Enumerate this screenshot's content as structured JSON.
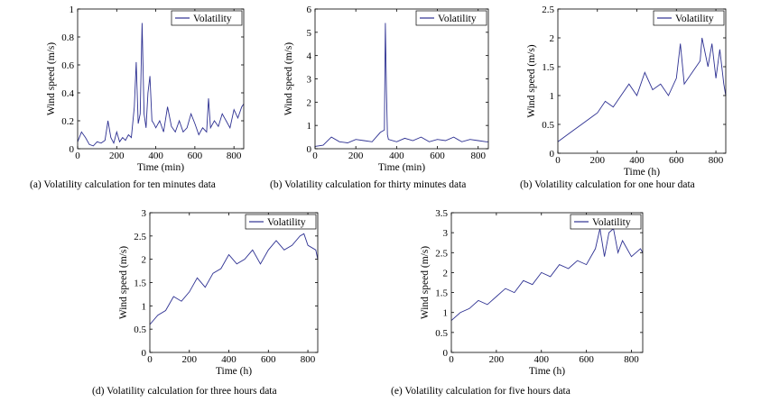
{
  "chart_data": [
    {
      "type": "line",
      "xlabel": "Time (min)",
      "ylabel": "Wind speed (m/s)",
      "xlim": [
        0,
        850
      ],
      "ylim": [
        0,
        1
      ],
      "xticks": [
        0,
        200,
        400,
        600,
        800
      ],
      "yticks": [
        0,
        0.2,
        0.4,
        0.6,
        0.8,
        1
      ],
      "ytick_labels": [
        "0",
        "0.2",
        "0.4",
        "0.6",
        "0.8",
        "1"
      ],
      "legend": "top-right",
      "caption": "(a) Volatility calculation for ten minutes data",
      "series": [
        {
          "name": "Volatility",
          "color": "#2e3192",
          "x": [
            0,
            20,
            40,
            60,
            80,
            100,
            120,
            140,
            155,
            170,
            185,
            200,
            215,
            230,
            245,
            260,
            275,
            290,
            300,
            310,
            320,
            330,
            340,
            350,
            360,
            370,
            380,
            390,
            400,
            420,
            440,
            460,
            480,
            500,
            520,
            540,
            560,
            580,
            600,
            620,
            640,
            660,
            670,
            680,
            700,
            720,
            740,
            760,
            780,
            800,
            820,
            840,
            850
          ],
          "values": [
            0.05,
            0.12,
            0.08,
            0.03,
            0.02,
            0.05,
            0.04,
            0.06,
            0.2,
            0.08,
            0.04,
            0.12,
            0.05,
            0.08,
            0.06,
            0.1,
            0.08,
            0.3,
            0.62,
            0.18,
            0.25,
            0.9,
            0.25,
            0.15,
            0.4,
            0.52,
            0.2,
            0.18,
            0.15,
            0.2,
            0.12,
            0.3,
            0.16,
            0.12,
            0.2,
            0.12,
            0.15,
            0.25,
            0.18,
            0.1,
            0.15,
            0.12,
            0.36,
            0.15,
            0.2,
            0.16,
            0.25,
            0.2,
            0.15,
            0.28,
            0.22,
            0.3,
            0.32
          ]
        }
      ]
    },
    {
      "type": "line",
      "xlabel": "Time (min)",
      "ylabel": "Wind speed (m/s)",
      "xlim": [
        0,
        850
      ],
      "ylim": [
        0,
        6
      ],
      "xticks": [
        0,
        200,
        400,
        600,
        800
      ],
      "yticks": [
        0,
        1,
        2,
        3,
        4,
        5,
        6
      ],
      "ytick_labels": [
        "0",
        "1",
        "2",
        "3",
        "4",
        "5",
        "6"
      ],
      "legend": "top-right",
      "caption": "(b) Volatility calculation for thirty minutes data",
      "series": [
        {
          "name": "Volatility",
          "color": "#2e3192",
          "x": [
            0,
            40,
            80,
            120,
            160,
            200,
            240,
            280,
            320,
            340,
            345,
            350,
            355,
            360,
            400,
            440,
            480,
            520,
            560,
            600,
            640,
            680,
            720,
            760,
            800,
            840,
            850
          ],
          "values": [
            0.1,
            0.15,
            0.5,
            0.3,
            0.25,
            0.4,
            0.35,
            0.3,
            0.7,
            0.8,
            5.4,
            2.5,
            0.6,
            0.4,
            0.3,
            0.45,
            0.35,
            0.5,
            0.3,
            0.4,
            0.35,
            0.5,
            0.3,
            0.4,
            0.35,
            0.3,
            0.3
          ]
        }
      ]
    },
    {
      "type": "line",
      "xlabel": "Time (h)",
      "ylabel": "Wind speed (m/s)",
      "xlim": [
        0,
        850
      ],
      "ylim": [
        0,
        2.5
      ],
      "xticks": [
        0,
        200,
        400,
        600,
        800
      ],
      "yticks": [
        0,
        0.5,
        1,
        1.5,
        2,
        2.5
      ],
      "ytick_labels": [
        "0",
        "0.5",
        "1",
        "1.5",
        "2",
        "2.5"
      ],
      "legend": "top-right",
      "caption": "(b) Volatility calculation for one hour data",
      "series": [
        {
          "name": "Volatility",
          "color": "#2e3192",
          "x": [
            0,
            40,
            80,
            120,
            160,
            200,
            240,
            280,
            320,
            360,
            400,
            440,
            480,
            520,
            560,
            600,
            620,
            640,
            680,
            720,
            730,
            760,
            780,
            800,
            820,
            840,
            850
          ],
          "values": [
            0.2,
            0.3,
            0.4,
            0.5,
            0.6,
            0.7,
            0.9,
            0.8,
            1.0,
            1.2,
            1.0,
            1.4,
            1.1,
            1.2,
            1.0,
            1.3,
            1.9,
            1.2,
            1.4,
            1.6,
            2.0,
            1.5,
            1.9,
            1.3,
            1.8,
            1.2,
            1.0
          ]
        }
      ]
    },
    {
      "type": "line",
      "xlabel": "Time (h)",
      "ylabel": "Wind speed (m/s)",
      "xlim": [
        0,
        850
      ],
      "ylim": [
        0,
        3
      ],
      "xticks": [
        0,
        200,
        400,
        600,
        800
      ],
      "yticks": [
        0,
        0.5,
        1,
        1.5,
        2,
        2.5,
        3
      ],
      "ytick_labels": [
        "0",
        "0.5",
        "1",
        "1.5",
        "2",
        "2.5",
        "3"
      ],
      "legend": "top-right",
      "caption": "(d) Volatility calculation for three hours data",
      "series": [
        {
          "name": "Volatility",
          "color": "#2e3192",
          "x": [
            0,
            40,
            80,
            120,
            160,
            200,
            240,
            280,
            320,
            360,
            400,
            440,
            480,
            520,
            560,
            600,
            640,
            680,
            720,
            760,
            780,
            800,
            840,
            850
          ],
          "values": [
            0.6,
            0.8,
            0.9,
            1.2,
            1.1,
            1.3,
            1.6,
            1.4,
            1.7,
            1.8,
            2.1,
            1.9,
            2.0,
            2.2,
            1.9,
            2.2,
            2.4,
            2.2,
            2.3,
            2.5,
            2.55,
            2.3,
            2.2,
            2.0
          ]
        }
      ]
    },
    {
      "type": "line",
      "xlabel": "Time (h)",
      "ylabel": "Wind speed (m/s)",
      "xlim": [
        0,
        850
      ],
      "ylim": [
        0,
        3.5
      ],
      "xticks": [
        0,
        200,
        400,
        600,
        800
      ],
      "yticks": [
        0,
        0.5,
        1,
        1.5,
        2,
        2.5,
        3,
        3.5
      ],
      "ytick_labels": [
        "0",
        "0.5",
        "1",
        "1.5",
        "2",
        "2.5",
        "3",
        "3.5"
      ],
      "legend": "top-right",
      "caption": "(e) Volatility calculation for five hours data",
      "series": [
        {
          "name": "Volatility",
          "color": "#2e3192",
          "x": [
            0,
            40,
            80,
            120,
            160,
            200,
            240,
            280,
            320,
            360,
            400,
            440,
            480,
            520,
            560,
            600,
            640,
            660,
            680,
            700,
            720,
            740,
            760,
            800,
            840,
            850
          ],
          "values": [
            0.8,
            1.0,
            1.1,
            1.3,
            1.2,
            1.4,
            1.6,
            1.5,
            1.8,
            1.7,
            2.0,
            1.9,
            2.2,
            2.1,
            2.3,
            2.2,
            2.6,
            3.1,
            2.4,
            3.0,
            3.1,
            2.5,
            2.8,
            2.4,
            2.6,
            2.5
          ]
        }
      ]
    }
  ]
}
